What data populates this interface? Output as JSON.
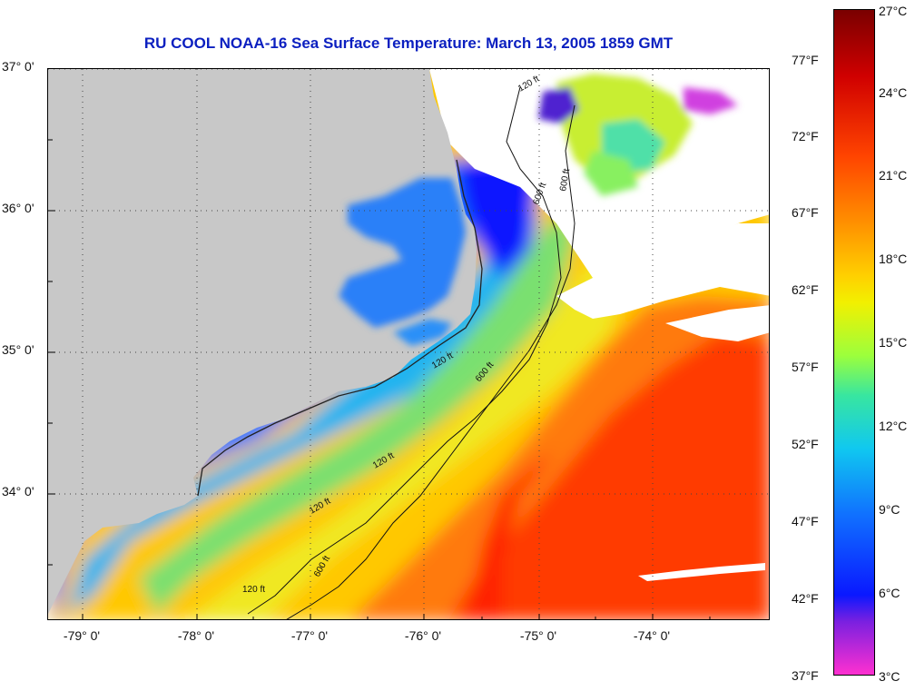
{
  "title": "RU COOL  NOAA-16  Sea Surface Temperature:  March 13, 2005 1859 GMT",
  "map": {
    "lat_labels": [
      "37° 0'",
      "36° 0'",
      "35° 0'",
      "34° 0'"
    ],
    "lon_labels": [
      "-79° 0'",
      "-78° 0'",
      "-77° 0'",
      "-76° 0'",
      "-75° 0'",
      "-74° 0'"
    ],
    "contour_labels": [
      "120 ft",
      "120 ft",
      "120 ft",
      "120 ft",
      "120 ft",
      "600 ft",
      "600 ft",
      "600 ft",
      "600 ft"
    ],
    "land_color": "#c8c8c8",
    "cloud_color": "#ffffff"
  },
  "colorbar": {
    "celsius_labels": [
      "27°C",
      "24°C",
      "21°C",
      "18°C",
      "15°C",
      "12°C",
      "9°C",
      "6°C",
      "3°C"
    ],
    "fahrenheit_labels": [
      "77°F",
      "72°F",
      "67°F",
      "62°F",
      "57°F",
      "52°F",
      "47°F",
      "42°F",
      "37°F"
    ],
    "stops": [
      "#7a0000",
      "#d00000",
      "#ff2a00",
      "#ff8a00",
      "#ffd000",
      "#f4f000",
      "#9cff3c",
      "#38e6a0",
      "#10c8f0",
      "#1070ff",
      "#0a18ff",
      "#8a20e0",
      "#ff30d0"
    ]
  }
}
